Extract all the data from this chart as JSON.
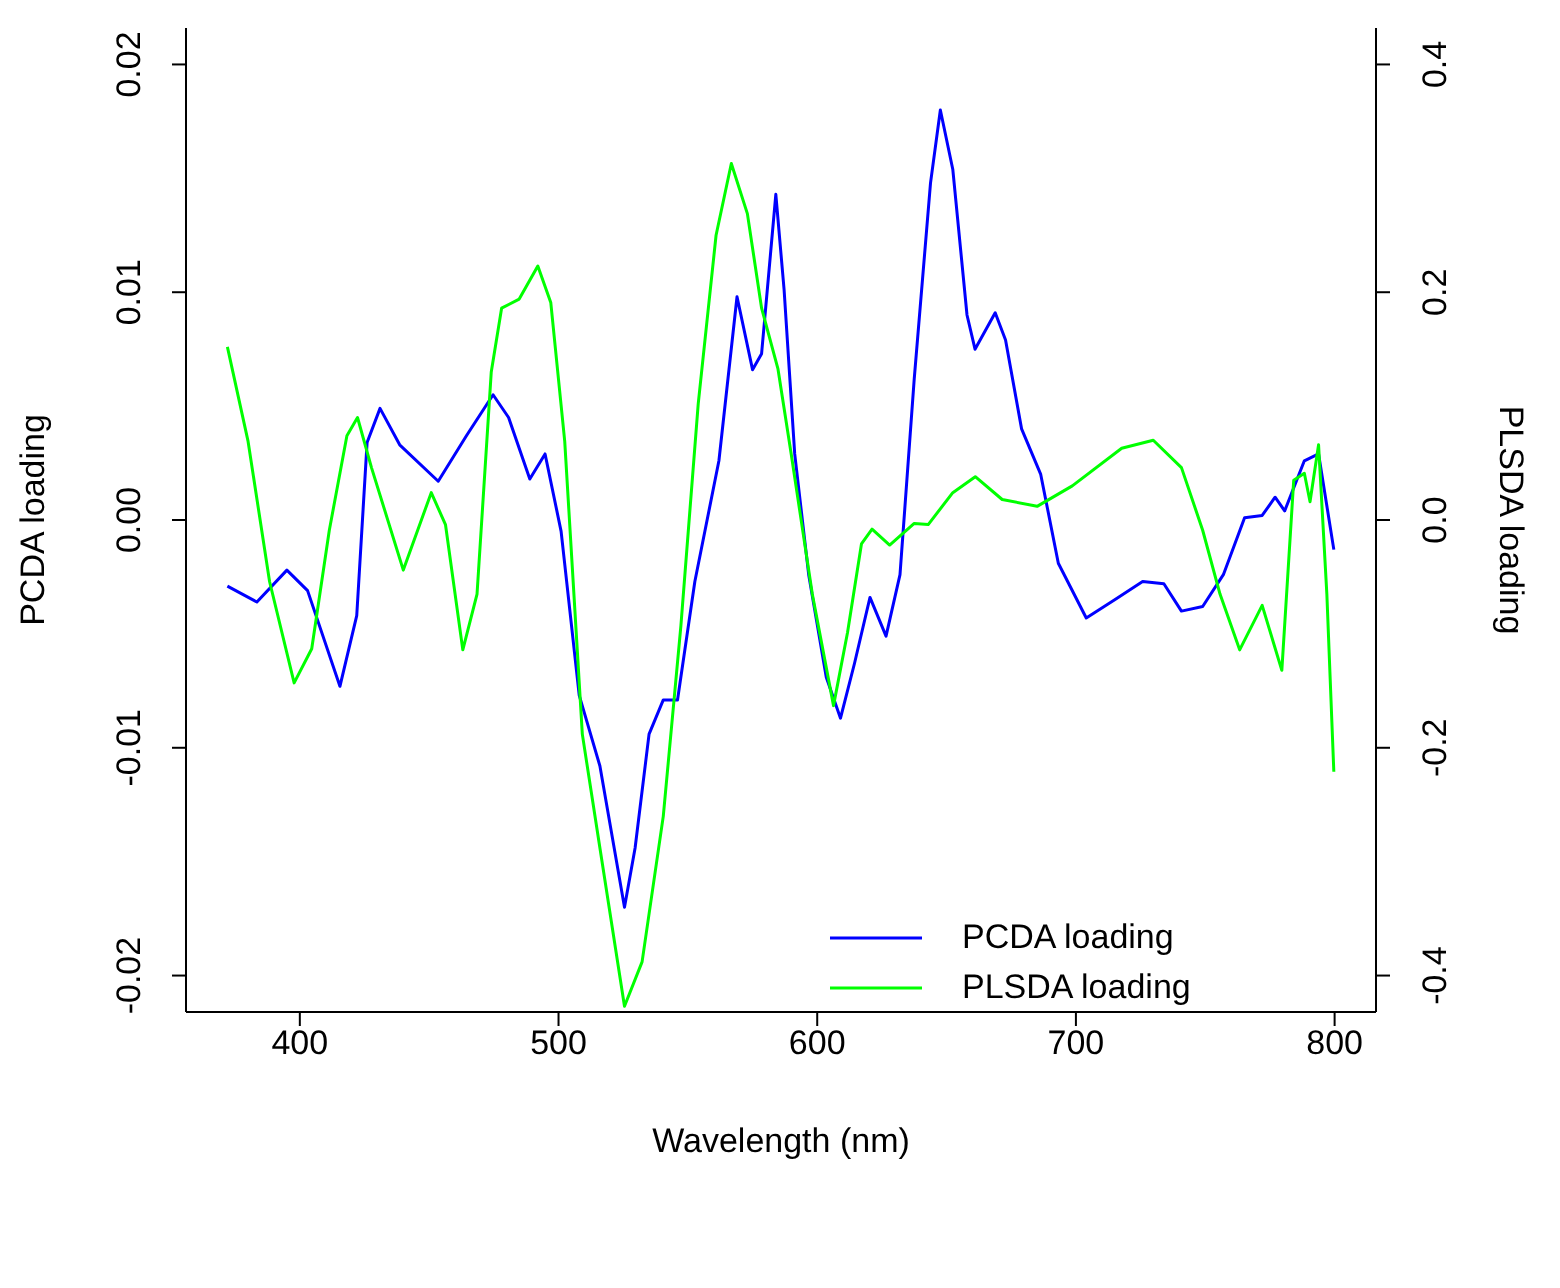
{
  "chart_data": {
    "type": "line",
    "xlabel": "Wavelength (nm)",
    "ylabel": "PCDA loading",
    "y2label": "PLSDA loading",
    "xlim": [
      356,
      816
    ],
    "xticks": [
      400,
      500,
      600,
      700,
      800
    ],
    "ylim": [
      -0.0216,
      0.0216
    ],
    "yticks": [
      {
        "value": -0.02,
        "label": "-0.02"
      },
      {
        "value": -0.01,
        "label": "-0.01"
      },
      {
        "value": 0,
        "label": "0.00"
      },
      {
        "value": 0.01,
        "label": "0.01"
      },
      {
        "value": 0.02,
        "label": "0.02"
      }
    ],
    "y2lim": [
      -0.432,
      0.432
    ],
    "y2ticks": [
      {
        "value": -0.4,
        "label": "-0.4"
      },
      {
        "value": -0.2,
        "label": "-0.2"
      },
      {
        "value": 0,
        "label": "0.0"
      },
      {
        "value": 0.2,
        "label": "0.2"
      },
      {
        "value": 0.4,
        "label": "0.4"
      }
    ],
    "grid": false,
    "legend": "bottom right",
    "marker": "none",
    "line_style": "solid",
    "series": [
      {
        "name": "PCDA loading",
        "color": "#0000ff",
        "x": [
          372,
          383.4,
          395,
          403,
          415.5,
          422,
          426,
          431,
          438.6,
          453.5,
          464.4,
          474.7,
          480.7,
          488.9,
          494.8,
          501,
          508,
          516,
          525.5,
          529.6,
          535,
          540.5,
          546,
          552.7,
          562,
          569,
          575,
          578.5,
          584,
          587.2,
          591.3,
          596.7,
          603.5,
          609,
          614.4,
          620.4,
          626.6,
          632,
          637.5,
          643.8,
          647.6,
          652.4,
          657.9,
          661,
          668.8,
          672.8,
          679,
          686.4,
          693.2,
          704,
          715,
          725.8,
          734,
          740.8,
          749,
          757,
          765.2,
          772,
          777,
          780.7,
          788.3,
          793.8,
          799.7
        ],
        "values": [
          -0.0029,
          -0.0036,
          -0.0022,
          -0.0031,
          -0.0073,
          -0.0042,
          0.0034,
          0.0049,
          0.0033,
          0.0017,
          0.0037,
          0.0055,
          0.0045,
          0.0018,
          0.0029,
          -0.0005,
          -0.0077,
          -0.0108,
          -0.017,
          -0.0144,
          -0.0094,
          -0.0079,
          -0.0079,
          -0.0027,
          0.0026,
          0.0098,
          0.0066,
          0.0073,
          0.0143,
          0.0101,
          0.0029,
          -0.0024,
          -0.0069,
          -0.0087,
          -0.0063,
          -0.0034,
          -0.0051,
          -0.0024,
          0.0062,
          0.0148,
          0.018,
          0.0154,
          0.009,
          0.0075,
          0.0091,
          0.0079,
          0.004,
          0.002,
          -0.0019,
          -0.0043,
          -0.0035,
          -0.0027,
          -0.0028,
          -0.004,
          -0.0038,
          -0.0024,
          0.0001,
          0.0002,
          0.001,
          0.0004,
          0.0026,
          0.0029,
          -0.0013
        ]
      },
      {
        "name": "PLSDA loading",
        "color": "#00ff00",
        "axis": "y2",
        "x": [
          372,
          380,
          388.3,
          397.8,
          404.6,
          411.4,
          418.2,
          422.3,
          427.7,
          440,
          450.8,
          456.3,
          463,
          468.5,
          474,
          478,
          484.8,
          492,
          497,
          502.4,
          509.2,
          516,
          525.5,
          532.3,
          540.5,
          547.3,
          554,
          560.9,
          566.8,
          573,
          578.5,
          584.8,
          590,
          598.1,
          606.3,
          611.7,
          617.1,
          621.2,
          628,
          637.5,
          642.9,
          652.4,
          661.1,
          671.5,
          685,
          698.6,
          717.7,
          729.9,
          740.8,
          749,
          755.7,
          763.3,
          772,
          779.6,
          784.2,
          788.3,
          790.5,
          793.8,
          797,
          799.7
        ],
        "values": [
          0.152,
          0.069,
          -0.054,
          -0.143,
          -0.113,
          -0.009,
          0.074,
          0.09,
          0.046,
          -0.044,
          0.024,
          -0.004,
          -0.114,
          -0.065,
          0.13,
          0.186,
          0.194,
          0.223,
          0.191,
          0.069,
          -0.188,
          -0.288,
          -0.427,
          -0.388,
          -0.26,
          -0.093,
          0.102,
          0.25,
          0.313,
          0.269,
          0.186,
          0.133,
          0.057,
          -0.065,
          -0.163,
          -0.099,
          -0.021,
          -0.008,
          -0.022,
          -0.003,
          -0.004,
          0.024,
          0.038,
          0.018,
          0.012,
          0.03,
          0.063,
          0.07,
          0.046,
          -0.009,
          -0.065,
          -0.114,
          -0.075,
          -0.132,
          0.035,
          0.041,
          0.016,
          0.066,
          -0.065,
          -0.221
        ]
      }
    ]
  }
}
